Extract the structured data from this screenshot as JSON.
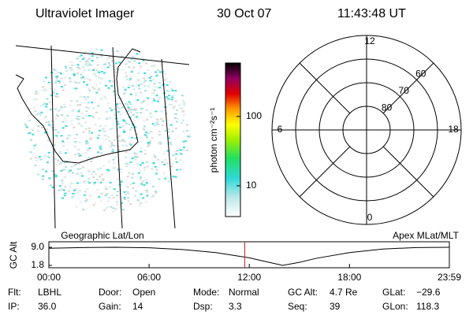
{
  "header": {
    "instrument": "Ultraviolet Imager",
    "date": "30 Oct 07",
    "time": "11:43:48 UT"
  },
  "map": {
    "label": "Geographic Lat/Lon"
  },
  "colorbar": {
    "label": "photon cm⁻²s⁻¹",
    "lim": [
      3.6,
      590
    ],
    "ticks": [
      10,
      100
    ],
    "log": true
  },
  "polar": {
    "label": "Apex MLat/MLT",
    "mlt_ticks": [
      12,
      18,
      6,
      0
    ],
    "lat_lim": [
      50,
      90
    ],
    "lat_ticks": [
      80,
      70,
      60
    ]
  },
  "timeline": {
    "ylabel": "GC Alt",
    "ylim": [
      1.8,
      9.0
    ],
    "yticks": [
      {
        "value": 9.0,
        "label": "9.0"
      },
      {
        "value": 1.8,
        "label": "1.8"
      }
    ],
    "xlim": [
      0,
      23.98
    ],
    "xticks": [
      {
        "value": 0,
        "label": "00:00"
      },
      {
        "value": 6,
        "label": "06:00"
      },
      {
        "value": 12,
        "label": "12:00"
      },
      {
        "value": 18,
        "label": "18:00"
      },
      {
        "value": 23.98,
        "label": "23:59"
      }
    ],
    "x": [
      0,
      2,
      4,
      6,
      8,
      10,
      12,
      13,
      14,
      15,
      16,
      18,
      20,
      22,
      23.98
    ],
    "values": [
      8.6,
      8.9,
      9.0,
      8.8,
      8.1,
      6.9,
      4.8,
      3.3,
      1.8,
      3.0,
      4.6,
      6.9,
      8.3,
      8.9,
      9.0
    ],
    "marker": 11.73
  },
  "footer": {
    "rows": [
      [
        {
          "label": "Flt:",
          "value": "LBHL"
        },
        {
          "label": "Door:",
          "value": "Open"
        },
        {
          "label": "Mode:",
          "value": "Normal"
        },
        {
          "label": "GC Alt:",
          "value": "4.7 Re"
        },
        {
          "label": "GLat:",
          "value": "−29.6"
        }
      ],
      [
        {
          "label": "IP:",
          "value": "36.0"
        },
        {
          "label": "Gain:",
          "value": "14"
        },
        {
          "label": "Dsp:",
          "value": "3.3"
        },
        {
          "label": "Seq:",
          "value": "39"
        },
        {
          "label": "GLon:",
          "value": "118.3"
        }
      ]
    ]
  }
}
